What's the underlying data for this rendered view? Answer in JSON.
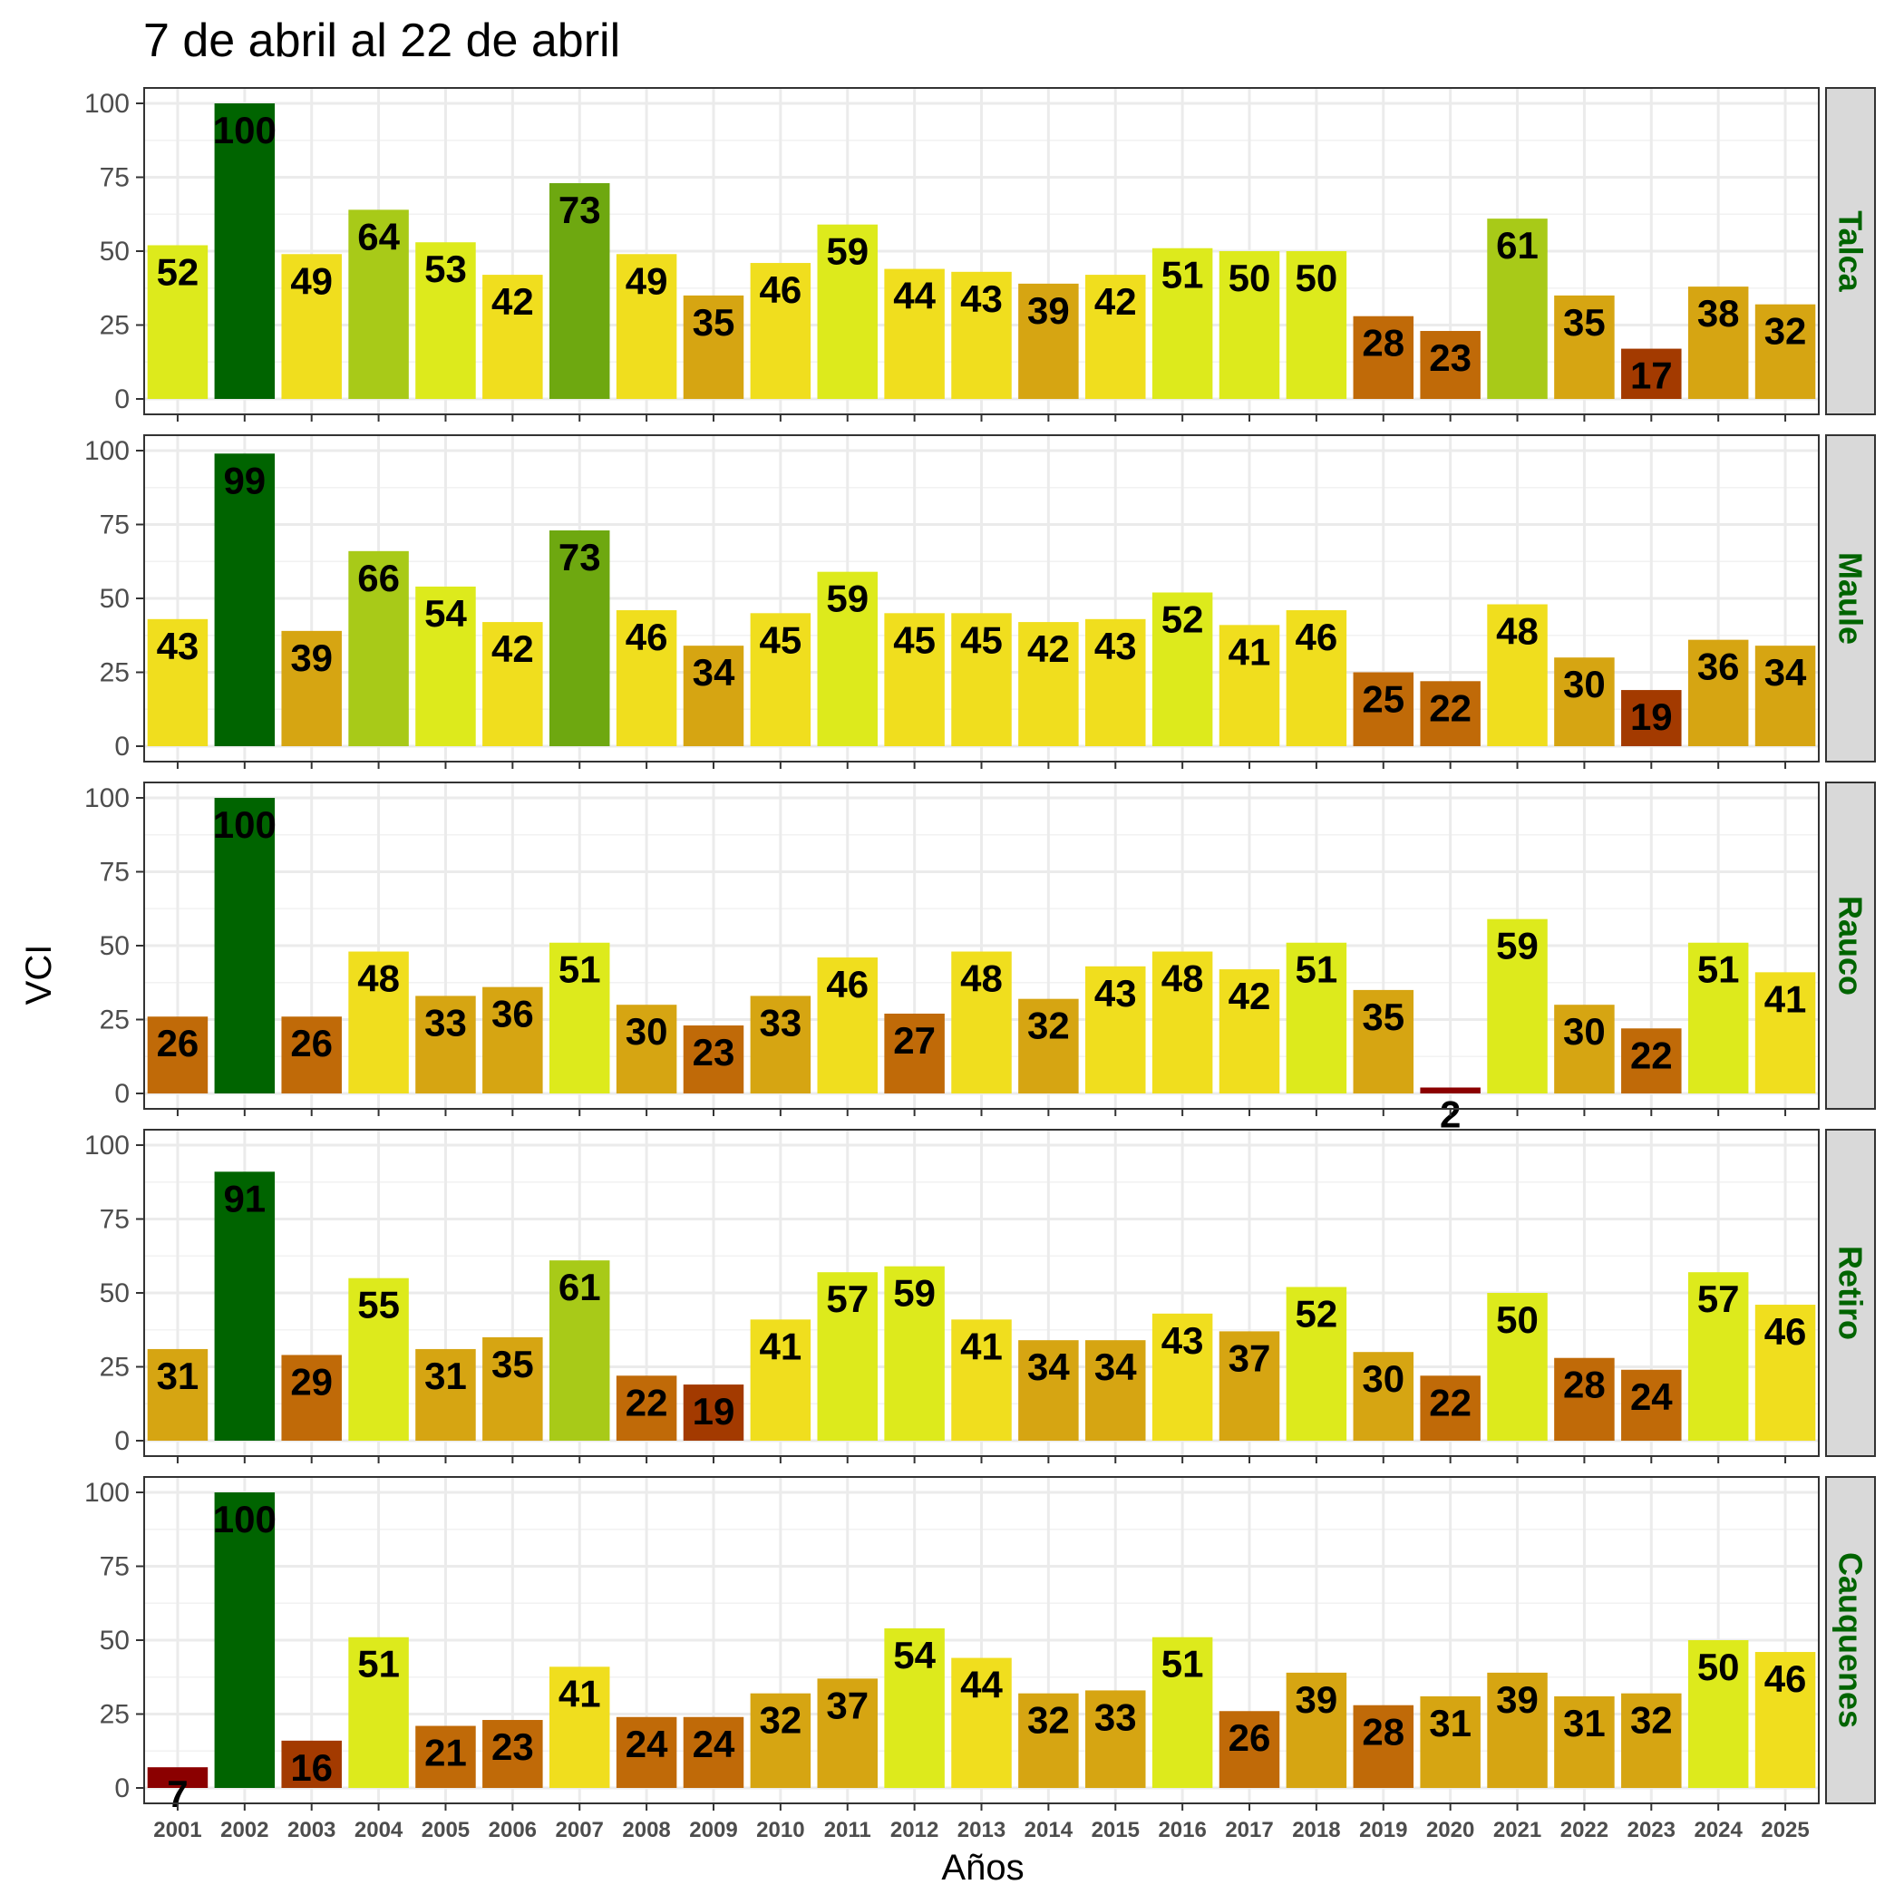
{
  "chart_data": {
    "type": "bar",
    "title": "7 de abril al 22 de abril",
    "xlabel": "Años",
    "ylabel": "VCI",
    "ylim": [
      0,
      100
    ],
    "yticks": [
      0,
      25,
      50,
      75,
      100
    ],
    "grid": true,
    "categories": [
      "2001",
      "2002",
      "2003",
      "2004",
      "2005",
      "2006",
      "2007",
      "2008",
      "2009",
      "2010",
      "2011",
      "2012",
      "2013",
      "2014",
      "2015",
      "2016",
      "2017",
      "2018",
      "2019",
      "2020",
      "2021",
      "2022",
      "2023",
      "2024",
      "2025"
    ],
    "facets": [
      {
        "name": "Talca",
        "values": [
          52,
          100,
          49,
          64,
          53,
          42,
          73,
          49,
          35,
          46,
          59,
          44,
          43,
          39,
          42,
          51,
          50,
          50,
          28,
          23,
          61,
          35,
          17,
          38,
          32
        ]
      },
      {
        "name": "Maule",
        "values": [
          43,
          99,
          39,
          66,
          54,
          42,
          73,
          46,
          34,
          45,
          59,
          45,
          45,
          42,
          43,
          52,
          41,
          46,
          25,
          22,
          48,
          30,
          19,
          36,
          34
        ]
      },
      {
        "name": "Rauco",
        "values": [
          26,
          100,
          26,
          48,
          33,
          36,
          51,
          30,
          23,
          33,
          46,
          27,
          48,
          32,
          43,
          48,
          42,
          51,
          35,
          2,
          59,
          30,
          22,
          51,
          41
        ]
      },
      {
        "name": "Retiro",
        "values": [
          31,
          91,
          29,
          55,
          31,
          35,
          61,
          22,
          19,
          41,
          57,
          59,
          41,
          34,
          34,
          43,
          37,
          52,
          30,
          22,
          50,
          28,
          24,
          57,
          46
        ]
      },
      {
        "name": "Cauquenes",
        "values": [
          7,
          100,
          16,
          51,
          21,
          23,
          41,
          24,
          24,
          32,
          37,
          54,
          44,
          32,
          33,
          51,
          26,
          39,
          28,
          31,
          39,
          31,
          32,
          50,
          46
        ]
      }
    ],
    "color_scale": [
      {
        "min": 0,
        "color": "#8B0000"
      },
      {
        "min": 10,
        "color": "#A33A00"
      },
      {
        "min": 20,
        "color": "#C06A08"
      },
      {
        "min": 30,
        "color": "#D6A512"
      },
      {
        "min": 40,
        "color": "#F0DE1E"
      },
      {
        "min": 50,
        "color": "#DDEA1C"
      },
      {
        "min": 60,
        "color": "#A8CA18"
      },
      {
        "min": 70,
        "color": "#6EA810"
      },
      {
        "min": 80,
        "color": "#006400"
      }
    ],
    "strip_color": "#006400",
    "strip_background": "#D9D9D9"
  }
}
